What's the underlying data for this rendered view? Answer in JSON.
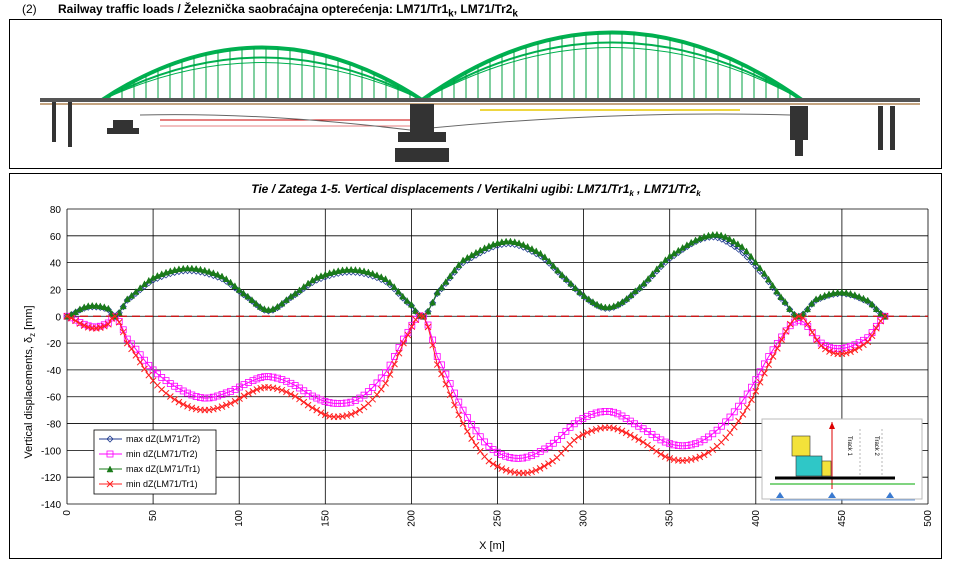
{
  "header": {
    "number": "(2)",
    "title_main": "Railway traffic loads / Železnička saobraćajna opterećenja: LM71/Tr1",
    "title_sub1": "k",
    "title_mid": ", LM71/Tr2",
    "title_sub2": "k"
  },
  "inset": {
    "labels": [
      "Track 1",
      "Track 2"
    ]
  },
  "colors": {
    "green": "#00b050",
    "dark_green": "#1a7a1a",
    "blue": "#1f3a8f",
    "magenta": "#ff00ff",
    "red": "#ff2020"
  },
  "chart_data": {
    "type": "line",
    "title_main": "Tie / Zatega 1-5. Vertical displacements / Vertikalni ugibi: LM71/Tr1",
    "title_sub1": "k",
    "title_mid": " , LM71/Tr2",
    "title_sub2": "k",
    "xlabel": "X  [m]",
    "ylabel_main": "Vertical displacements, δ",
    "ylabel_sub": "z",
    "ylabel_unit": " [mm]",
    "xlim": [
      0,
      500
    ],
    "ylim": [
      -140,
      80
    ],
    "xticks": [
      0,
      50,
      100,
      150,
      200,
      250,
      300,
      350,
      400,
      450,
      500
    ],
    "yticks": [
      80,
      60,
      40,
      20,
      0,
      -20,
      -40,
      -60,
      -80,
      -100,
      -120,
      -140
    ],
    "grid": true,
    "legend_position": "bottom-left",
    "series": [
      {
        "name": "max dZ(LM71/Tr2)",
        "color": "#1f3a8f",
        "marker": "diamond",
        "points": [
          [
            0,
            0
          ],
          [
            10,
            6
          ],
          [
            17,
            7
          ],
          [
            24,
            5
          ],
          [
            28,
            0
          ],
          [
            35,
            12
          ],
          [
            50,
            27
          ],
          [
            70,
            34
          ],
          [
            90,
            28
          ],
          [
            105,
            14
          ],
          [
            117,
            4
          ],
          [
            130,
            14
          ],
          [
            145,
            27
          ],
          [
            165,
            33
          ],
          [
            185,
            26
          ],
          [
            200,
            8
          ],
          [
            207,
            0
          ],
          [
            215,
            17
          ],
          [
            230,
            40
          ],
          [
            255,
            54
          ],
          [
            275,
            45
          ],
          [
            290,
            27
          ],
          [
            303,
            12
          ],
          [
            315,
            6
          ],
          [
            330,
            18
          ],
          [
            350,
            43
          ],
          [
            373,
            59
          ],
          [
            390,
            50
          ],
          [
            405,
            30
          ],
          [
            417,
            10
          ],
          [
            425,
            0
          ],
          [
            435,
            12
          ],
          [
            450,
            17
          ],
          [
            465,
            11
          ],
          [
            475,
            0
          ]
        ]
      },
      {
        "name": "min dZ(LM71/Tr2)",
        "color": "#ff00ff",
        "marker": "square",
        "points": [
          [
            0,
            0
          ],
          [
            10,
            -6
          ],
          [
            17,
            -8
          ],
          [
            24,
            -5
          ],
          [
            28,
            0
          ],
          [
            35,
            -17
          ],
          [
            50,
            -40
          ],
          [
            65,
            -54
          ],
          [
            80,
            -61
          ],
          [
            95,
            -56
          ],
          [
            108,
            -48
          ],
          [
            117,
            -45
          ],
          [
            130,
            -50
          ],
          [
            145,
            -61
          ],
          [
            157,
            -65
          ],
          [
            170,
            -61
          ],
          [
            185,
            -42
          ],
          [
            198,
            -12
          ],
          [
            207,
            0
          ],
          [
            215,
            -30
          ],
          [
            230,
            -70
          ],
          [
            245,
            -97
          ],
          [
            262,
            -106
          ],
          [
            280,
            -97
          ],
          [
            297,
            -78
          ],
          [
            315,
            -71
          ],
          [
            332,
            -82
          ],
          [
            350,
            -95
          ],
          [
            365,
            -95
          ],
          [
            380,
            -82
          ],
          [
            395,
            -58
          ],
          [
            410,
            -25
          ],
          [
            425,
            -3
          ],
          [
            438,
            -20
          ],
          [
            450,
            -24
          ],
          [
            465,
            -16
          ],
          [
            475,
            0
          ]
        ]
      },
      {
        "name": "max dZ(LM71/Tr1)",
        "color": "#1a7a1a",
        "marker": "triangle",
        "points": [
          [
            0,
            0
          ],
          [
            10,
            7
          ],
          [
            17,
            8
          ],
          [
            24,
            6
          ],
          [
            28,
            0
          ],
          [
            35,
            13
          ],
          [
            50,
            29
          ],
          [
            70,
            36
          ],
          [
            90,
            30
          ],
          [
            105,
            15
          ],
          [
            117,
            5
          ],
          [
            130,
            15
          ],
          [
            145,
            29
          ],
          [
            165,
            35
          ],
          [
            185,
            28
          ],
          [
            200,
            9
          ],
          [
            207,
            0
          ],
          [
            215,
            18
          ],
          [
            230,
            42
          ],
          [
            255,
            56
          ],
          [
            275,
            47
          ],
          [
            290,
            28
          ],
          [
            303,
            13
          ],
          [
            315,
            7
          ],
          [
            330,
            19
          ],
          [
            350,
            45
          ],
          [
            375,
            61
          ],
          [
            392,
            52
          ],
          [
            405,
            32
          ],
          [
            417,
            11
          ],
          [
            425,
            0
          ],
          [
            435,
            13
          ],
          [
            450,
            18
          ],
          [
            465,
            12
          ],
          [
            475,
            0
          ]
        ]
      },
      {
        "name": "min dZ(LM71/Tr1)",
        "color": "#ff2020",
        "marker": "x",
        "points": [
          [
            0,
            0
          ],
          [
            10,
            -7
          ],
          [
            17,
            -9
          ],
          [
            24,
            -6
          ],
          [
            28,
            0
          ],
          [
            35,
            -20
          ],
          [
            50,
            -48
          ],
          [
            65,
            -64
          ],
          [
            80,
            -70
          ],
          [
            95,
            -65
          ],
          [
            108,
            -56
          ],
          [
            117,
            -53
          ],
          [
            130,
            -58
          ],
          [
            145,
            -70
          ],
          [
            155,
            -75
          ],
          [
            170,
            -70
          ],
          [
            185,
            -50
          ],
          [
            198,
            -14
          ],
          [
            207,
            0
          ],
          [
            215,
            -36
          ],
          [
            230,
            -80
          ],
          [
            245,
            -108
          ],
          [
            265,
            -117
          ],
          [
            282,
            -108
          ],
          [
            297,
            -90
          ],
          [
            315,
            -83
          ],
          [
            332,
            -92
          ],
          [
            350,
            -106
          ],
          [
            365,
            -106
          ],
          [
            380,
            -94
          ],
          [
            395,
            -68
          ],
          [
            410,
            -30
          ],
          [
            425,
            0
          ],
          [
            438,
            -22
          ],
          [
            450,
            -28
          ],
          [
            465,
            -19
          ],
          [
            475,
            0
          ]
        ]
      }
    ],
    "reference_line": {
      "y": 0,
      "style": "dashed",
      "color": "#cc0000"
    }
  }
}
